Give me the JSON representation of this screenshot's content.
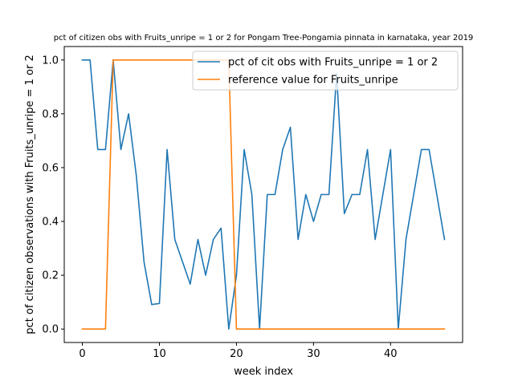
{
  "chart_data": {
    "type": "line",
    "title": "pct of citizen obs with Fruits_unripe = 1 or 2 for Pongam Tree-Pongamia pinnata in karnataka, year 2019",
    "xlabel": "week index",
    "ylabel": "pct of citizen observations with Fruits_unripe = 1 or 2",
    "xlim": [
      -2.35,
      49.35
    ],
    "ylim": [
      -0.05,
      1.05
    ],
    "xticks": [
      0,
      10,
      20,
      30,
      40
    ],
    "yticks": [
      0.0,
      0.2,
      0.4,
      0.6,
      0.8,
      1.0
    ],
    "grid": false,
    "legend_position": "upper right",
    "x": [
      0,
      1,
      2,
      3,
      4,
      5,
      6,
      7,
      8,
      9,
      10,
      11,
      12,
      13,
      14,
      15,
      16,
      17,
      18,
      19,
      20,
      21,
      22,
      23,
      24,
      25,
      26,
      27,
      28,
      29,
      30,
      31,
      32,
      33,
      34,
      35,
      36,
      37,
      38,
      39,
      40,
      41,
      42,
      43,
      44,
      45,
      46,
      47
    ],
    "series": [
      {
        "name": "pct of cit obs with Fruits_unripe = 1 or 2",
        "color": "#1f77b4",
        "values": [
          1.0,
          1.0,
          0.667,
          0.667,
          1.0,
          0.667,
          0.8,
          0.571,
          0.25,
          0.091,
          0.095,
          0.667,
          0.333,
          0.25,
          0.167,
          0.333,
          0.2,
          0.333,
          0.375,
          0.0,
          0.2,
          0.667,
          0.5,
          0.0,
          0.5,
          0.5,
          0.667,
          0.75,
          0.333,
          0.5,
          0.4,
          0.5,
          0.5,
          0.95,
          0.429,
          0.5,
          0.5,
          0.667,
          0.333,
          0.5,
          0.667,
          0.0,
          0.333,
          0.5,
          0.667,
          0.667,
          0.5,
          0.333
        ]
      },
      {
        "name": "reference value for Fruits_unripe",
        "color": "#ff7f0e",
        "values": [
          0,
          0,
          0,
          0,
          1,
          1,
          1,
          1,
          1,
          1,
          1,
          1,
          1,
          1,
          1,
          1,
          1,
          1,
          1,
          1,
          0,
          0,
          0,
          0,
          0,
          0,
          0,
          0,
          0,
          0,
          0,
          0,
          0,
          0,
          0,
          0,
          0,
          0,
          0,
          0,
          0,
          0,
          0,
          0,
          0,
          0,
          0,
          0
        ]
      }
    ]
  }
}
